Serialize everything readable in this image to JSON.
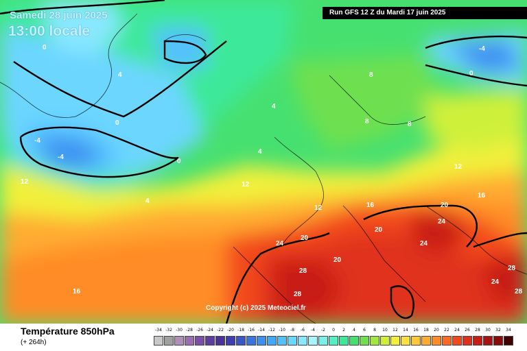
{
  "header": {
    "date": "Samedi 28 juin 2025",
    "time": "13:00 locale",
    "run": "Run GFS 12 Z du Mardi 17 juin 2025"
  },
  "footer": {
    "parameter": "Température 850hPa",
    "lead": "(+ 264h)",
    "copyright": "Copyright (c) 2025 Meteociel.fr"
  },
  "legend": {
    "values": [
      "-34",
      "-32",
      "-30",
      "-28",
      "-26",
      "-24",
      "-22",
      "-20",
      "-18",
      "-16",
      "-14",
      "-12",
      "-10",
      "-8",
      "-6",
      "-4",
      "-2",
      "0",
      "2",
      "4",
      "6",
      "8",
      "10",
      "12",
      "14",
      "16",
      "18",
      "20",
      "22",
      "24",
      "26",
      "28",
      "30",
      "32",
      "34"
    ],
    "colors": [
      "#c8c8c8",
      "#a0a0a0",
      "#b090b8",
      "#9a6fb0",
      "#7c4fa6",
      "#5e3da0",
      "#4a3398",
      "#3d3fb0",
      "#3856c8",
      "#3a74e0",
      "#3d8ff0",
      "#42a8f8",
      "#55c0ff",
      "#6cd6ff",
      "#88e8ff",
      "#a8f4ff",
      "#7bf0e8",
      "#55eec0",
      "#3de89a",
      "#46e070",
      "#6ee050",
      "#a0e840",
      "#cff03a",
      "#f2f03a",
      "#fce040",
      "#ffc83a",
      "#ffac30",
      "#ff8c28",
      "#ff6a22",
      "#f24a1c",
      "#e0301a",
      "#c81c16",
      "#a81212",
      "#880c0c",
      "#400000"
    ]
  },
  "map_labels": [
    {
      "t": "0",
      "cls": "contour"
    },
    {
      "t": "0",
      "cls": "contour"
    },
    {
      "t": "0",
      "cls": "contour"
    },
    {
      "t": "0",
      "cls": "contour"
    },
    {
      "t": "4",
      "cls": "contour"
    },
    {
      "t": "4",
      "cls": "contour"
    },
    {
      "t": "4",
      "cls": "contour"
    },
    {
      "t": "4",
      "cls": "contour"
    },
    {
      "t": "-4",
      "cls": "contour"
    },
    {
      "t": "-4",
      "cls": "contour"
    },
    {
      "t": "-4",
      "cls": "contour"
    },
    {
      "t": "8",
      "cls": "contour"
    },
    {
      "t": "8",
      "cls": "contour"
    },
    {
      "t": "8",
      "cls": "contour"
    },
    {
      "t": "12",
      "cls": "contour"
    },
    {
      "t": "12",
      "cls": "contour"
    },
    {
      "t": "12",
      "cls": "contour"
    },
    {
      "t": "12",
      "cls": "contour"
    },
    {
      "t": "16",
      "cls": "contour"
    },
    {
      "t": "16",
      "cls": "contour"
    },
    {
      "t": "16",
      "cls": "contour"
    },
    {
      "t": "20",
      "cls": "contour"
    },
    {
      "t": "20",
      "cls": "contour"
    },
    {
      "t": "20",
      "cls": "contour"
    },
    {
      "t": "20",
      "cls": "contour"
    },
    {
      "t": "24",
      "cls": "contour"
    },
    {
      "t": "24",
      "cls": "contour"
    },
    {
      "t": "24",
      "cls": "contour"
    },
    {
      "t": "24",
      "cls": "contour"
    },
    {
      "t": "28",
      "cls": "contour"
    },
    {
      "t": "28",
      "cls": "contour"
    },
    {
      "t": "28",
      "cls": "contour"
    },
    {
      "t": "28",
      "cls": "contour"
    }
  ],
  "colors": {
    "cold": "#6cd6ff",
    "cool": "#46e070",
    "mild": "#f2f03a",
    "warm": "#ff8c28",
    "hot": "#c81c16",
    "contour": "#000000",
    "label": "#ffffff"
  }
}
